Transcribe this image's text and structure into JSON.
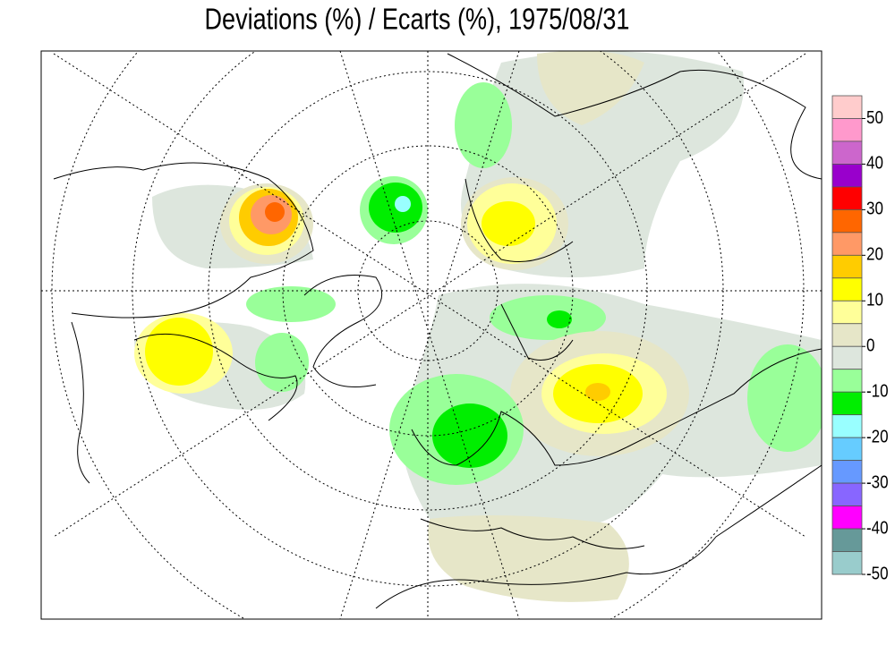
{
  "title": "Deviations (%) / Ecarts (%), 1975/08/31",
  "colorbar": {
    "lim": [
      55,
      -50
    ],
    "ticks": [
      50,
      40,
      30,
      20,
      10,
      0,
      -10,
      -20,
      -30,
      -40,
      -50
    ],
    "colors": [
      "#ffcccc",
      "#ff99cc",
      "#cc66cc",
      "#9900cc",
      "#ff0000",
      "#ff6600",
      "#ff9966",
      "#ffcc00",
      "#ffff00",
      "#ffff99",
      "#e6e6c8",
      "#dde6dd",
      "#99ff99",
      "#00ee00",
      "#99ffff",
      "#66ccff",
      "#6699ff",
      "#8866ff",
      "#ff00ff",
      "#669999",
      "#99cccc"
    ]
  }
}
